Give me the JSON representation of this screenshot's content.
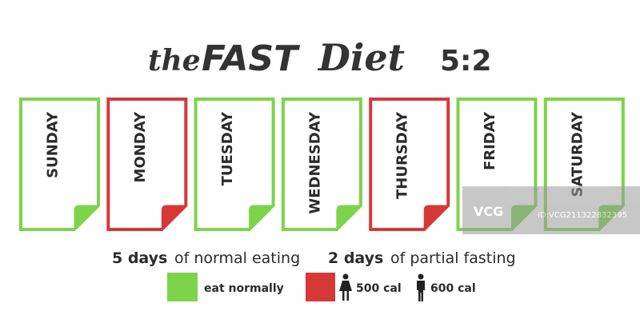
{
  "title": {
    "the": "the",
    "fast": "FAST",
    "diet": "Diet",
    "ratio": "5:2"
  },
  "days": [
    {
      "label": "SUNDAY",
      "color": "#7dd34a"
    },
    {
      "label": "MONDAY",
      "color": "#d63838"
    },
    {
      "label": "TUESDAY",
      "color": "#7dd34a"
    },
    {
      "label": "WEDNESDAY",
      "color": "#7dd34a"
    },
    {
      "label": "THURSDAY",
      "color": "#d63838"
    },
    {
      "label": "FRIDAY",
      "color": "#7dd34a"
    },
    {
      "label": "SATURDAY",
      "color": "#7dd34a"
    }
  ],
  "caption": {
    "normal_count": "5 days",
    "normal_text": "of normal eating",
    "fasting_count": "2 days",
    "fasting_text": "of partial fasting"
  },
  "legend": {
    "normal": {
      "label": "eat normally",
      "color": "#7dd34a"
    },
    "fasting": {
      "color": "#d63838"
    },
    "female": "500 cal",
    "male": "600 cal"
  },
  "watermark": {
    "logo": "VCG",
    "id": "ID:VCG211322832395"
  }
}
